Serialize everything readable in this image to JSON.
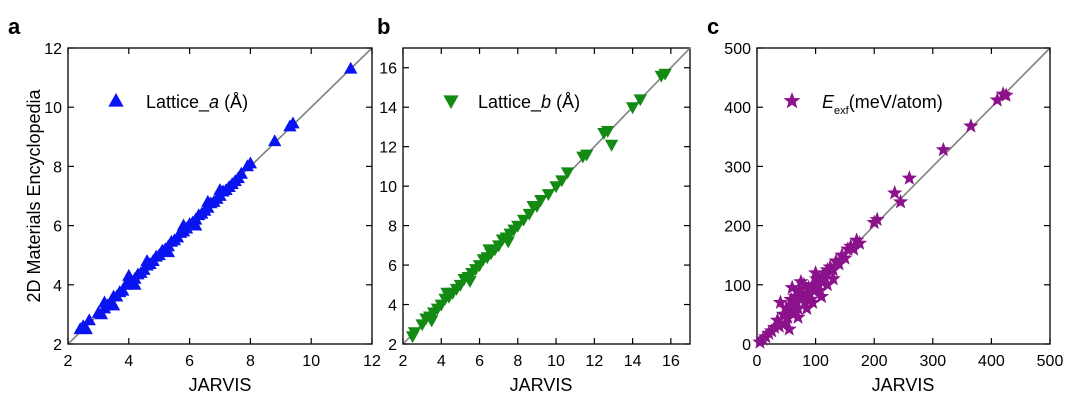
{
  "figure": {
    "ylabel_shared": "2D Materials Encyclopedia"
  },
  "colors": {
    "blue": "#0a14f0",
    "green": "#138a13",
    "purple": "#8b128b",
    "diagonal": "#808080"
  },
  "chart_data": [
    {
      "panel": "a",
      "type": "scatter",
      "marker": "triangle-up",
      "color": "#0a14f0",
      "legend": {
        "prefix": "Lattice_",
        "var": "a",
        "unit": " (Å)"
      },
      "xlabel": "JARVIS",
      "ylabel": "2D Materials Encyclopedia",
      "xlim": [
        2,
        12
      ],
      "ylim": [
        2,
        12
      ],
      "xticks": [
        2,
        4,
        6,
        8,
        10,
        12
      ],
      "yticks": [
        2,
        4,
        6,
        8,
        10,
        12
      ],
      "diagonal": true,
      "points": [
        [
          2.4,
          2.5
        ],
        [
          2.5,
          2.6
        ],
        [
          2.6,
          2.5
        ],
        [
          2.7,
          2.8
        ],
        [
          3.0,
          3.05
        ],
        [
          3.1,
          3.0
        ],
        [
          3.2,
          3.2
        ],
        [
          3.3,
          3.3
        ],
        [
          3.4,
          3.35
        ],
        [
          3.5,
          3.6
        ],
        [
          3.6,
          3.6
        ],
        [
          3.7,
          3.75
        ],
        [
          3.8,
          3.8
        ],
        [
          3.9,
          4.0
        ],
        [
          4.0,
          4.05
        ],
        [
          4.1,
          4.1
        ],
        [
          4.2,
          4.2
        ],
        [
          4.3,
          4.35
        ],
        [
          4.4,
          4.4
        ],
        [
          4.5,
          4.5
        ],
        [
          4.6,
          4.65
        ],
        [
          4.7,
          4.7
        ],
        [
          4.8,
          4.8
        ],
        [
          4.9,
          4.95
        ],
        [
          5.0,
          5.0
        ],
        [
          5.1,
          5.15
        ],
        [
          5.2,
          5.2
        ],
        [
          5.3,
          5.3
        ],
        [
          5.4,
          5.45
        ],
        [
          5.5,
          5.5
        ],
        [
          5.6,
          5.6
        ],
        [
          5.7,
          5.75
        ],
        [
          5.8,
          5.8
        ],
        [
          5.9,
          5.9
        ],
        [
          6.0,
          6.05
        ],
        [
          6.1,
          6.1
        ],
        [
          6.2,
          6.2
        ],
        [
          6.3,
          6.35
        ],
        [
          6.4,
          6.4
        ],
        [
          6.5,
          6.5
        ],
        [
          6.6,
          6.6
        ],
        [
          6.7,
          6.75
        ],
        [
          6.8,
          6.8
        ],
        [
          6.9,
          6.9
        ],
        [
          7.0,
          7.0
        ],
        [
          7.1,
          7.15
        ],
        [
          7.2,
          7.2
        ],
        [
          7.3,
          7.3
        ],
        [
          7.4,
          7.4
        ],
        [
          7.5,
          7.5
        ],
        [
          7.6,
          7.6
        ],
        [
          7.7,
          7.75
        ],
        [
          7.9,
          8.0
        ],
        [
          8.0,
          8.1
        ],
        [
          8.8,
          8.85
        ],
        [
          9.3,
          9.35
        ],
        [
          9.4,
          9.45
        ],
        [
          11.3,
          11.3
        ],
        [
          3.2,
          3.4
        ],
        [
          3.5,
          3.3
        ],
        [
          4.0,
          4.3
        ],
        [
          4.2,
          4.0
        ],
        [
          4.6,
          4.8
        ],
        [
          5.3,
          5.1
        ],
        [
          5.8,
          6.0
        ],
        [
          6.2,
          6.0
        ],
        [
          6.6,
          6.8
        ],
        [
          7.0,
          7.2
        ]
      ]
    },
    {
      "panel": "b",
      "type": "scatter",
      "marker": "triangle-down",
      "color": "#138a13",
      "legend": {
        "prefix": "Lattice_",
        "var": "b",
        "unit": " (Å)"
      },
      "xlabel": "JARVIS",
      "ylabel": "",
      "xlim": [
        2,
        17
      ],
      "ylim": [
        2,
        17
      ],
      "xticks": [
        2,
        4,
        6,
        8,
        10,
        12,
        14,
        16
      ],
      "yticks": [
        2,
        4,
        6,
        8,
        10,
        12,
        14,
        16
      ],
      "diagonal": true,
      "points": [
        [
          2.5,
          2.4
        ],
        [
          2.6,
          2.6
        ],
        [
          3.0,
          3.0
        ],
        [
          3.2,
          3.3
        ],
        [
          3.4,
          3.4
        ],
        [
          3.6,
          3.6
        ],
        [
          3.8,
          3.8
        ],
        [
          4.0,
          4.0
        ],
        [
          4.2,
          4.3
        ],
        [
          4.4,
          4.4
        ],
        [
          4.6,
          4.6
        ],
        [
          4.8,
          4.8
        ],
        [
          5.0,
          5.0
        ],
        [
          5.2,
          5.3
        ],
        [
          5.4,
          5.4
        ],
        [
          5.6,
          5.6
        ],
        [
          5.8,
          5.8
        ],
        [
          6.0,
          6.0
        ],
        [
          6.2,
          6.3
        ],
        [
          6.4,
          6.4
        ],
        [
          6.6,
          6.6
        ],
        [
          6.8,
          6.8
        ],
        [
          7.0,
          7.0
        ],
        [
          7.2,
          7.3
        ],
        [
          7.4,
          7.4
        ],
        [
          7.6,
          7.6
        ],
        [
          7.8,
          7.8
        ],
        [
          8.0,
          8.0
        ],
        [
          8.3,
          8.3
        ],
        [
          8.6,
          8.6
        ],
        [
          9.0,
          9.0
        ],
        [
          9.2,
          9.3
        ],
        [
          9.6,
          9.6
        ],
        [
          10.0,
          10.0
        ],
        [
          10.3,
          10.3
        ],
        [
          10.6,
          10.7
        ],
        [
          11.4,
          11.5
        ],
        [
          11.6,
          11.6
        ],
        [
          12.5,
          12.7
        ],
        [
          12.7,
          12.8
        ],
        [
          12.9,
          12.1
        ],
        [
          14.0,
          14.0
        ],
        [
          14.4,
          14.4
        ],
        [
          15.5,
          15.6
        ],
        [
          15.7,
          15.7
        ],
        [
          3.5,
          3.2
        ],
        [
          4.3,
          4.6
        ],
        [
          5.5,
          5.2
        ],
        [
          6.5,
          6.8
        ],
        [
          7.5,
          7.2
        ],
        [
          8.8,
          9.0
        ]
      ]
    },
    {
      "panel": "c",
      "type": "scatter",
      "marker": "star",
      "color": "#8b128b",
      "legend": {
        "symbol": "E",
        "subscript": "exf",
        "unit": "(meV/atom)"
      },
      "xlabel": "JARVIS",
      "ylabel": "",
      "xlim": [
        0,
        500
      ],
      "ylim": [
        0,
        500
      ],
      "xticks": [
        0,
        100,
        200,
        300,
        400,
        500
      ],
      "yticks": [
        0,
        100,
        200,
        300,
        400,
        500
      ],
      "diagonal": true,
      "points": [
        [
          5,
          3
        ],
        [
          10,
          8
        ],
        [
          15,
          12
        ],
        [
          20,
          18
        ],
        [
          25,
          22
        ],
        [
          30,
          28
        ],
        [
          35,
          40
        ],
        [
          38,
          30
        ],
        [
          40,
          70
        ],
        [
          45,
          50
        ],
        [
          50,
          60
        ],
        [
          52,
          45
        ],
        [
          55,
          55
        ],
        [
          58,
          75
        ],
        [
          60,
          65
        ],
        [
          62,
          50
        ],
        [
          65,
          80
        ],
        [
          68,
          70
        ],
        [
          70,
          60
        ],
        [
          72,
          90
        ],
        [
          75,
          75
        ],
        [
          78,
          85
        ],
        [
          80,
          100
        ],
        [
          82,
          70
        ],
        [
          85,
          80
        ],
        [
          88,
          95
        ],
        [
          90,
          85
        ],
        [
          92,
          75
        ],
        [
          95,
          100
        ],
        [
          98,
          90
        ],
        [
          100,
          95
        ],
        [
          102,
          110
        ],
        [
          105,
          100
        ],
        [
          108,
          90
        ],
        [
          110,
          105
        ],
        [
          112,
          115
        ],
        [
          115,
          110
        ],
        [
          118,
          120
        ],
        [
          120,
          125
        ],
        [
          125,
          130
        ],
        [
          130,
          125
        ],
        [
          135,
          140
        ],
        [
          140,
          135
        ],
        [
          145,
          150
        ],
        [
          150,
          145
        ],
        [
          155,
          160
        ],
        [
          160,
          165
        ],
        [
          165,
          160
        ],
        [
          170,
          175
        ],
        [
          175,
          170
        ],
        [
          200,
          205
        ],
        [
          205,
          210
        ],
        [
          235,
          255
        ],
        [
          245,
          240
        ],
        [
          260,
          280
        ],
        [
          318,
          328
        ],
        [
          365,
          368
        ],
        [
          410,
          412
        ],
        [
          420,
          422
        ],
        [
          425,
          420
        ],
        [
          48,
          35
        ],
        [
          55,
          25
        ],
        [
          60,
          95
        ],
        [
          70,
          45
        ],
        [
          75,
          105
        ],
        [
          85,
          60
        ],
        [
          95,
          70
        ],
        [
          100,
          120
        ],
        [
          110,
          80
        ],
        [
          120,
          100
        ],
        [
          130,
          110
        ]
      ]
    }
  ]
}
